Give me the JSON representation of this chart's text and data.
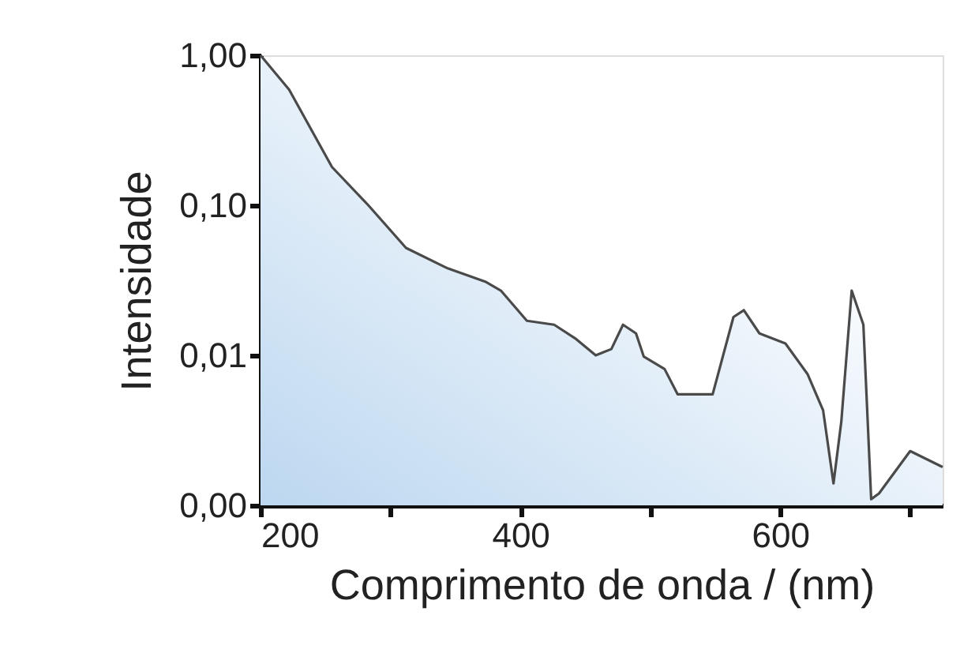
{
  "chart_data": {
    "type": "area",
    "xlabel": "Comprimento de onda / (nm)",
    "ylabel": "Intensidade",
    "log": "y",
    "grid": false,
    "xlim": [
      200,
      725
    ],
    "ylim": [
      0.001,
      1
    ],
    "xticks": [
      200,
      {
        "value": 300,
        "label": null
      },
      400,
      {
        "value": 500,
        "label": null
      },
      600,
      {
        "value": 700,
        "label": null
      }
    ],
    "yticks": [
      {
        "value": 1,
        "label": "1,00"
      },
      {
        "value": 0.1,
        "label": "0,10"
      },
      {
        "value": 0.01,
        "label": "0,01"
      },
      {
        "value": 0.001,
        "label": "0,00"
      }
    ],
    "series": [
      {
        "color": "#4a4a4a",
        "x": [
          200,
          222,
          255,
          283,
          312,
          344,
          373,
          385,
          405,
          426,
          442,
          458,
          470,
          479,
          489,
          495,
          511,
          521,
          548,
          564,
          572,
          584,
          604,
          621,
          633,
          641,
          647,
          655,
          664,
          670,
          676,
          700,
          725
        ],
        "values": [
          1.0,
          0.59,
          0.18,
          0.1,
          0.052,
          0.038,
          0.031,
          0.027,
          0.017,
          0.016,
          0.013,
          0.01,
          0.011,
          0.016,
          0.014,
          0.0098,
          0.0081,
          0.0055,
          0.0055,
          0.018,
          0.02,
          0.014,
          0.012,
          0.0075,
          0.0043,
          0.0014,
          0.0036,
          0.027,
          0.016,
          0.0011,
          0.0012,
          0.0023,
          0.0018
        ]
      }
    ]
  }
}
